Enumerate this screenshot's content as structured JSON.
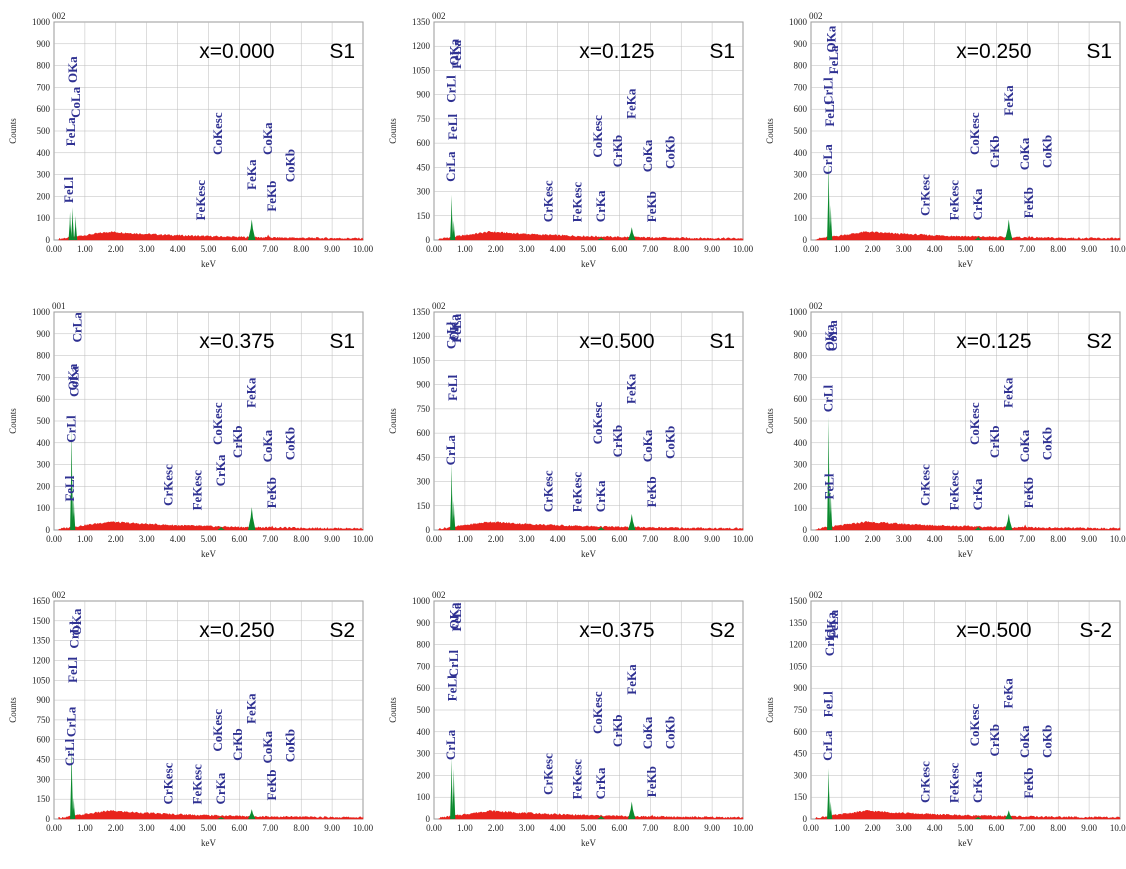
{
  "figure": {
    "colors": {
      "background": "#a8d0a8",
      "green": "#0b8a2e",
      "red": "#e8231c",
      "label": "#2f3192"
    },
    "axis": {
      "x_label": "keV",
      "y_label": "Counts",
      "x_ticks": [
        "0.00",
        "1.00",
        "2.00",
        "3.00",
        "4.00",
        "5.00",
        "6.00",
        "7.00",
        "8.00",
        "9.00",
        "10.00"
      ]
    }
  },
  "chart_data": [
    {
      "type": "area",
      "sample_id": "002",
      "composition": "x=0.000",
      "sample": "S1",
      "ylim": [
        0,
        1000
      ],
      "y_ticks": [
        "0",
        "100",
        "200",
        "300",
        "400",
        "500",
        "600",
        "700",
        "800",
        "900",
        "1000"
      ],
      "peaks": [
        {
          "x": 0.52,
          "y": 130,
          "color": "green"
        },
        {
          "x": 0.6,
          "y": 150,
          "color": "green"
        },
        {
          "x": 0.7,
          "y": 110,
          "color": "green"
        },
        {
          "x": 6.4,
          "y": 95,
          "color": "green"
        },
        {
          "x": 6.93,
          "y": 25,
          "color": "red"
        }
      ],
      "labels": [
        {
          "text": "FeLl",
          "x": 0.48,
          "y": 170
        },
        {
          "text": "FeLa",
          "x": 0.55,
          "y": 430
        },
        {
          "text": "OKa",
          "x": 0.62,
          "y": 720
        },
        {
          "text": "CoLa",
          "x": 0.72,
          "y": 560
        },
        {
          "text": "FeKesc",
          "x": 4.75,
          "y": 90
        },
        {
          "text": "CoKesc",
          "x": 5.3,
          "y": 390
        },
        {
          "text": "FeKa",
          "x": 6.4,
          "y": 230
        },
        {
          "text": "CoKa",
          "x": 6.93,
          "y": 390
        },
        {
          "text": "FeKb",
          "x": 7.06,
          "y": 130
        },
        {
          "text": "CoKb",
          "x": 7.65,
          "y": 265
        }
      ]
    },
    {
      "type": "area",
      "sample_id": "002",
      "composition": "x=0.125",
      "sample": "S1",
      "ylim": [
        0,
        1350
      ],
      "y_ticks": [
        "0",
        "150",
        "300",
        "450",
        "600",
        "750",
        "900",
        "1050",
        "1200",
        "1350"
      ],
      "peaks": [
        {
          "x": 0.57,
          "y": 280,
          "color": "green"
        },
        {
          "x": 0.64,
          "y": 120,
          "color": "green"
        },
        {
          "x": 6.4,
          "y": 80,
          "color": "green"
        },
        {
          "x": 5.41,
          "y": 15,
          "color": "green"
        },
        {
          "x": 7.06,
          "y": 20,
          "color": "red"
        }
      ],
      "labels": [
        {
          "text": "CrLa",
          "x": 0.55,
          "y": 360
        },
        {
          "text": "CrLl",
          "x": 0.57,
          "y": 850
        },
        {
          "text": "FeLl",
          "x": 0.62,
          "y": 620
        },
        {
          "text": "OKa",
          "x": 0.66,
          "y": 1080
        },
        {
          "text": "FeLa",
          "x": 0.74,
          "y": 1060
        },
        {
          "text": "CrKesc",
          "x": 3.7,
          "y": 110
        },
        {
          "text": "FeKesc",
          "x": 4.65,
          "y": 110
        },
        {
          "text": "CrKa",
          "x": 5.41,
          "y": 110
        },
        {
          "text": "CoKesc",
          "x": 5.3,
          "y": 510
        },
        {
          "text": "CrKb",
          "x": 5.95,
          "y": 450
        },
        {
          "text": "FeKa",
          "x": 6.4,
          "y": 750
        },
        {
          "text": "CoKa",
          "x": 6.93,
          "y": 420
        },
        {
          "text": "FeKb",
          "x": 7.06,
          "y": 110
        },
        {
          "text": "CoKb",
          "x": 7.65,
          "y": 440
        }
      ]
    },
    {
      "type": "area",
      "sample_id": "002",
      "composition": "x=0.250",
      "sample": "S1",
      "ylim": [
        0,
        1000
      ],
      "y_ticks": [
        "0",
        "100",
        "200",
        "300",
        "400",
        "500",
        "600",
        "700",
        "800",
        "900",
        "1000"
      ],
      "peaks": [
        {
          "x": 0.57,
          "y": 360,
          "color": "green"
        },
        {
          "x": 0.64,
          "y": 160,
          "color": "green"
        },
        {
          "x": 6.4,
          "y": 95,
          "color": "green"
        },
        {
          "x": 5.41,
          "y": 15,
          "color": "green"
        },
        {
          "x": 7.06,
          "y": 20,
          "color": "red"
        }
      ],
      "labels": [
        {
          "text": "CrLa",
          "x": 0.55,
          "y": 300
        },
        {
          "text": "CrLl",
          "x": 0.57,
          "y": 620
        },
        {
          "text": "FeLl",
          "x": 0.62,
          "y": 520
        },
        {
          "text": "OKa",
          "x": 0.66,
          "y": 860
        },
        {
          "text": "FeLa",
          "x": 0.74,
          "y": 760
        },
        {
          "text": "CrKesc",
          "x": 3.7,
          "y": 110
        },
        {
          "text": "FeKesc",
          "x": 4.65,
          "y": 90
        },
        {
          "text": "CrKa",
          "x": 5.41,
          "y": 90
        },
        {
          "text": "CoKesc",
          "x": 5.3,
          "y": 390
        },
        {
          "text": "CrKb",
          "x": 5.95,
          "y": 330
        },
        {
          "text": "FeKa",
          "x": 6.4,
          "y": 570
        },
        {
          "text": "CoKa",
          "x": 6.93,
          "y": 320
        },
        {
          "text": "FeKb",
          "x": 7.06,
          "y": 100
        },
        {
          "text": "CoKb",
          "x": 7.65,
          "y": 330
        }
      ]
    },
    {
      "type": "area",
      "sample_id": "001",
      "composition": "x=0.375",
      "sample": "S1",
      "ylim": [
        0,
        1000
      ],
      "y_ticks": [
        "0",
        "100",
        "200",
        "300",
        "400",
        "500",
        "600",
        "700",
        "800",
        "900",
        "1000"
      ],
      "peaks": [
        {
          "x": 0.57,
          "y": 470,
          "color": "green"
        },
        {
          "x": 0.64,
          "y": 150,
          "color": "green"
        },
        {
          "x": 6.4,
          "y": 105,
          "color": "green"
        },
        {
          "x": 5.41,
          "y": 15,
          "color": "green"
        },
        {
          "x": 7.06,
          "y": 20,
          "color": "red"
        }
      ],
      "labels": [
        {
          "text": "FeLl",
          "x": 0.52,
          "y": 130
        },
        {
          "text": "CrLl",
          "x": 0.57,
          "y": 400
        },
        {
          "text": "OKa",
          "x": 0.62,
          "y": 640
        },
        {
          "text": "CoLa",
          "x": 0.66,
          "y": 610
        },
        {
          "text": "CrLa",
          "x": 0.76,
          "y": 860
        },
        {
          "text": "CrKesc",
          "x": 3.7,
          "y": 110
        },
        {
          "text": "FeKesc",
          "x": 4.65,
          "y": 90
        },
        {
          "text": "CrKa",
          "x": 5.41,
          "y": 200
        },
        {
          "text": "CoKesc",
          "x": 5.3,
          "y": 390
        },
        {
          "text": "CrKb",
          "x": 5.95,
          "y": 330
        },
        {
          "text": "FeKa",
          "x": 6.4,
          "y": 560
        },
        {
          "text": "CoKa",
          "x": 6.93,
          "y": 310
        },
        {
          "text": "FeKb",
          "x": 7.06,
          "y": 100
        },
        {
          "text": "CoKb",
          "x": 7.65,
          "y": 320
        }
      ]
    },
    {
      "type": "area",
      "sample_id": "002",
      "composition": "x=0.500",
      "sample": "S1",
      "ylim": [
        0,
        1350
      ],
      "y_ticks": [
        "0",
        "150",
        "300",
        "450",
        "600",
        "750",
        "900",
        "1050",
        "1200",
        "1350"
      ],
      "peaks": [
        {
          "x": 0.57,
          "y": 410,
          "color": "green"
        },
        {
          "x": 0.64,
          "y": 180,
          "color": "green"
        },
        {
          "x": 6.4,
          "y": 100,
          "color": "green"
        },
        {
          "x": 5.41,
          "y": 20,
          "color": "green"
        },
        {
          "x": 7.06,
          "y": 20,
          "color": "red"
        }
      ],
      "labels": [
        {
          "text": "CrLa",
          "x": 0.55,
          "y": 400
        },
        {
          "text": "CrLl",
          "x": 0.57,
          "y": 1120
        },
        {
          "text": "FeLl",
          "x": 0.62,
          "y": 800
        },
        {
          "text": "OKa",
          "x": 0.66,
          "y": 1170
        },
        {
          "text": "FeLa",
          "x": 0.74,
          "y": 1160
        },
        {
          "text": "CrKesc",
          "x": 3.7,
          "y": 110
        },
        {
          "text": "FeKesc",
          "x": 4.65,
          "y": 110
        },
        {
          "text": "CrKa",
          "x": 5.41,
          "y": 110
        },
        {
          "text": "CoKesc",
          "x": 5.3,
          "y": 530
        },
        {
          "text": "CrKb",
          "x": 5.95,
          "y": 450
        },
        {
          "text": "FeKa",
          "x": 6.4,
          "y": 780
        },
        {
          "text": "CoKa",
          "x": 6.93,
          "y": 420
        },
        {
          "text": "FeKb",
          "x": 7.06,
          "y": 140
        },
        {
          "text": "CoKb",
          "x": 7.65,
          "y": 440
        }
      ]
    },
    {
      "type": "area",
      "sample_id": "002",
      "composition": "x=0.125",
      "sample": "S2",
      "ylim": [
        0,
        1000
      ],
      "y_ticks": [
        "0",
        "100",
        "200",
        "300",
        "400",
        "500",
        "600",
        "700",
        "800",
        "900",
        "1000"
      ],
      "peaks": [
        {
          "x": 0.57,
          "y": 520,
          "color": "green"
        },
        {
          "x": 0.64,
          "y": 180,
          "color": "green"
        },
        {
          "x": 6.4,
          "y": 75,
          "color": "green"
        },
        {
          "x": 5.41,
          "y": 15,
          "color": "green"
        },
        {
          "x": 6.93,
          "y": 25,
          "color": "red"
        }
      ],
      "labels": [
        {
          "text": "CrLl",
          "x": 0.57,
          "y": 540
        },
        {
          "text": "FeLl",
          "x": 0.6,
          "y": 140
        },
        {
          "text": "OKa",
          "x": 0.62,
          "y": 820
        },
        {
          "text": "CoLa",
          "x": 0.72,
          "y": 820
        },
        {
          "text": "CrKesc",
          "x": 3.7,
          "y": 110
        },
        {
          "text": "FeKesc",
          "x": 4.65,
          "y": 90
        },
        {
          "text": "CrKa",
          "x": 5.41,
          "y": 90
        },
        {
          "text": "CoKesc",
          "x": 5.3,
          "y": 390
        },
        {
          "text": "CrKb",
          "x": 5.95,
          "y": 330
        },
        {
          "text": "FeKa",
          "x": 6.4,
          "y": 560
        },
        {
          "text": "CoKa",
          "x": 6.93,
          "y": 310
        },
        {
          "text": "FeKb",
          "x": 7.06,
          "y": 100
        },
        {
          "text": "CoKb",
          "x": 7.65,
          "y": 320
        }
      ]
    },
    {
      "type": "area",
      "sample_id": "002",
      "composition": "x=0.250",
      "sample": "S2",
      "ylim": [
        0,
        1650
      ],
      "y_ticks": [
        "0",
        "150",
        "300",
        "450",
        "600",
        "750",
        "900",
        "1050",
        "1200",
        "1350",
        "1500",
        "1650"
      ],
      "peaks": [
        {
          "x": 0.57,
          "y": 560,
          "color": "green"
        },
        {
          "x": 0.64,
          "y": 160,
          "color": "green"
        },
        {
          "x": 6.4,
          "y": 75,
          "color": "green"
        },
        {
          "x": 5.41,
          "y": 15,
          "color": "green"
        },
        {
          "x": 7.06,
          "y": 20,
          "color": "red"
        }
      ],
      "labels": [
        {
          "text": "CrLl",
          "x": 0.52,
          "y": 400
        },
        {
          "text": "CrLa",
          "x": 0.57,
          "y": 620
        },
        {
          "text": "FeLl",
          "x": 0.62,
          "y": 1030
        },
        {
          "text": "CrLl",
          "x": 0.66,
          "y": 1290
        },
        {
          "text": "OKa",
          "x": 0.74,
          "y": 1390
        },
        {
          "text": "CrKesc",
          "x": 3.7,
          "y": 110
        },
        {
          "text": "FeKesc",
          "x": 4.65,
          "y": 110
        },
        {
          "text": "CrKa",
          "x": 5.41,
          "y": 110
        },
        {
          "text": "CoKesc",
          "x": 5.3,
          "y": 510
        },
        {
          "text": "CrKb",
          "x": 5.95,
          "y": 440
        },
        {
          "text": "FeKa",
          "x": 6.4,
          "y": 720
        },
        {
          "text": "CoKa",
          "x": 6.93,
          "y": 420
        },
        {
          "text": "FeKb",
          "x": 7.06,
          "y": 140
        },
        {
          "text": "CoKb",
          "x": 7.65,
          "y": 430
        }
      ]
    },
    {
      "type": "area",
      "sample_id": "002",
      "composition": "x=0.375",
      "sample": "S2",
      "ylim": [
        0,
        1000
      ],
      "y_ticks": [
        "0",
        "100",
        "200",
        "300",
        "400",
        "500",
        "600",
        "700",
        "800",
        "900",
        "1000"
      ],
      "peaks": [
        {
          "x": 0.57,
          "y": 280,
          "color": "green"
        },
        {
          "x": 0.64,
          "y": 230,
          "color": "green"
        },
        {
          "x": 6.4,
          "y": 80,
          "color": "green"
        },
        {
          "x": 5.41,
          "y": 15,
          "color": "green"
        },
        {
          "x": 7.06,
          "y": 20,
          "color": "red"
        }
      ],
      "labels": [
        {
          "text": "CrLa",
          "x": 0.55,
          "y": 270
        },
        {
          "text": "FeLl",
          "x": 0.6,
          "y": 540
        },
        {
          "text": "CrLl",
          "x": 0.64,
          "y": 650
        },
        {
          "text": "OKa",
          "x": 0.66,
          "y": 870
        },
        {
          "text": "FeLa",
          "x": 0.74,
          "y": 860
        },
        {
          "text": "CrKesc",
          "x": 3.7,
          "y": 110
        },
        {
          "text": "FeKesc",
          "x": 4.65,
          "y": 90
        },
        {
          "text": "CrKa",
          "x": 5.41,
          "y": 90
        },
        {
          "text": "CoKesc",
          "x": 5.3,
          "y": 390
        },
        {
          "text": "CrKb",
          "x": 5.95,
          "y": 330
        },
        {
          "text": "FeKa",
          "x": 6.4,
          "y": 570
        },
        {
          "text": "CoKa",
          "x": 6.93,
          "y": 320
        },
        {
          "text": "FeKb",
          "x": 7.06,
          "y": 100
        },
        {
          "text": "CoKb",
          "x": 7.65,
          "y": 320
        }
      ]
    },
    {
      "type": "area",
      "sample_id": "002",
      "composition": "x=0.500",
      "sample": "S-2",
      "ylim": [
        0,
        1500
      ],
      "y_ticks": [
        "0",
        "150",
        "300",
        "450",
        "600",
        "750",
        "900",
        "1050",
        "1200",
        "1350",
        "1500"
      ],
      "peaks": [
        {
          "x": 0.57,
          "y": 350,
          "color": "green"
        },
        {
          "x": 0.64,
          "y": 120,
          "color": "green"
        },
        {
          "x": 6.4,
          "y": 60,
          "color": "green"
        },
        {
          "x": 5.41,
          "y": 15,
          "color": "green"
        },
        {
          "x": 7.06,
          "y": 20,
          "color": "red"
        }
      ],
      "labels": [
        {
          "text": "CrLa",
          "x": 0.55,
          "y": 400
        },
        {
          "text": "FeLl",
          "x": 0.57,
          "y": 700
        },
        {
          "text": "CrLl",
          "x": 0.62,
          "y": 1120
        },
        {
          "text": "OKa",
          "x": 0.66,
          "y": 1240
        },
        {
          "text": "FeLa",
          "x": 0.74,
          "y": 1240
        },
        {
          "text": "CrKesc",
          "x": 3.7,
          "y": 110
        },
        {
          "text": "FeKesc",
          "x": 4.65,
          "y": 110
        },
        {
          "text": "CrKa",
          "x": 5.41,
          "y": 110
        },
        {
          "text": "CoKesc",
          "x": 5.3,
          "y": 500
        },
        {
          "text": "CrKb",
          "x": 5.95,
          "y": 430
        },
        {
          "text": "FeKa",
          "x": 6.4,
          "y": 760
        },
        {
          "text": "CoKa",
          "x": 6.93,
          "y": 420
        },
        {
          "text": "FeKb",
          "x": 7.06,
          "y": 140
        },
        {
          "text": "CoKb",
          "x": 7.65,
          "y": 420
        }
      ]
    }
  ]
}
